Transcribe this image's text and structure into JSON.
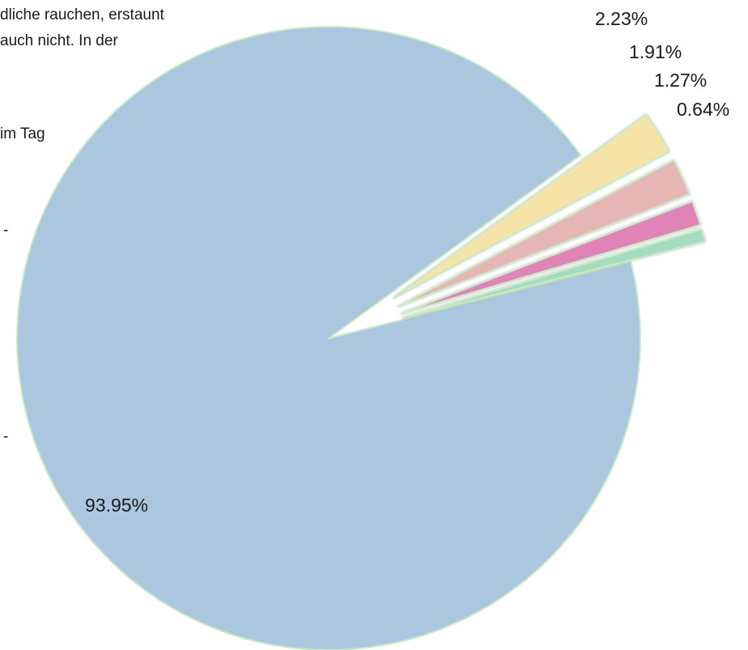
{
  "background_text": [
    "dliche rauchen, erstaunt",
    "auch  nicht.  In  der",
    "im  Tag",
    "-",
    "-"
  ],
  "chart_data": {
    "type": "pie",
    "title": "",
    "slices": [
      {
        "value": 93.95,
        "label": "93.95%",
        "color": "#abc6df"
      },
      {
        "value": 2.23,
        "label": "2.23%",
        "color": "#f6e3a8"
      },
      {
        "value": 1.91,
        "label": "1.91%",
        "color": "#e5b6b3"
      },
      {
        "value": 1.27,
        "label": "1.27%",
        "color": "#e084b8"
      },
      {
        "value": 0.64,
        "label": "0.64%",
        "color": "#a5dbbf"
      }
    ],
    "exploded_slices": [
      1,
      2,
      3,
      4
    ],
    "slice_edge_color": "#c8ebc6",
    "legend": false
  }
}
